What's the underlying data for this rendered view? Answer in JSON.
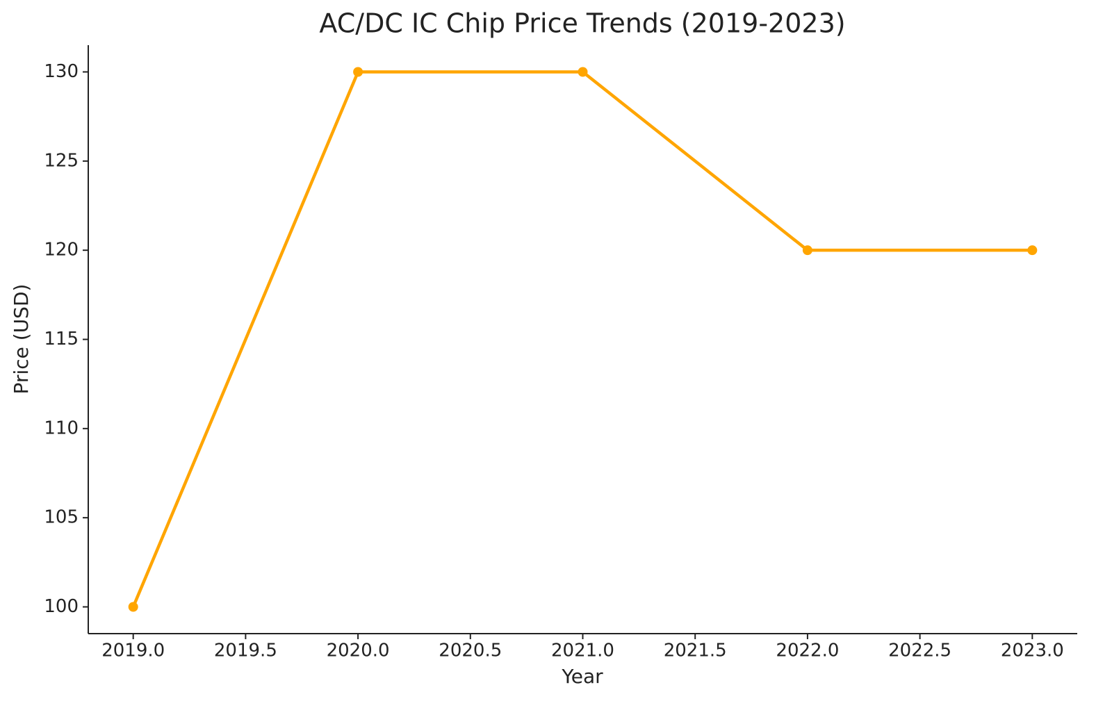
{
  "chart_data": {
    "type": "line",
    "title": "AC/DC IC Chip Price Trends (2019-2023)",
    "xlabel": "Year",
    "ylabel": "Price (USD)",
    "x": [
      2019,
      2020,
      2021,
      2022,
      2023
    ],
    "values": [
      100,
      130,
      130,
      120,
      120
    ],
    "color": "#ffa500",
    "xlim": [
      2018.8,
      2023.2
    ],
    "xticks": [
      {
        "value": 2019,
        "label": "2019.0"
      },
      2019.5,
      {
        "value": 2020,
        "label": "2020.0"
      },
      2020.5,
      {
        "value": 2021,
        "label": "2021.0"
      },
      2021.5,
      {
        "value": 2022,
        "label": "2022.0"
      },
      2022.5,
      {
        "value": 2023,
        "label": "2023.0"
      }
    ],
    "ylim": [
      98.5,
      131.5
    ],
    "yticks": [
      100,
      105,
      110,
      115,
      120,
      125,
      130
    ],
    "grid": false
  }
}
